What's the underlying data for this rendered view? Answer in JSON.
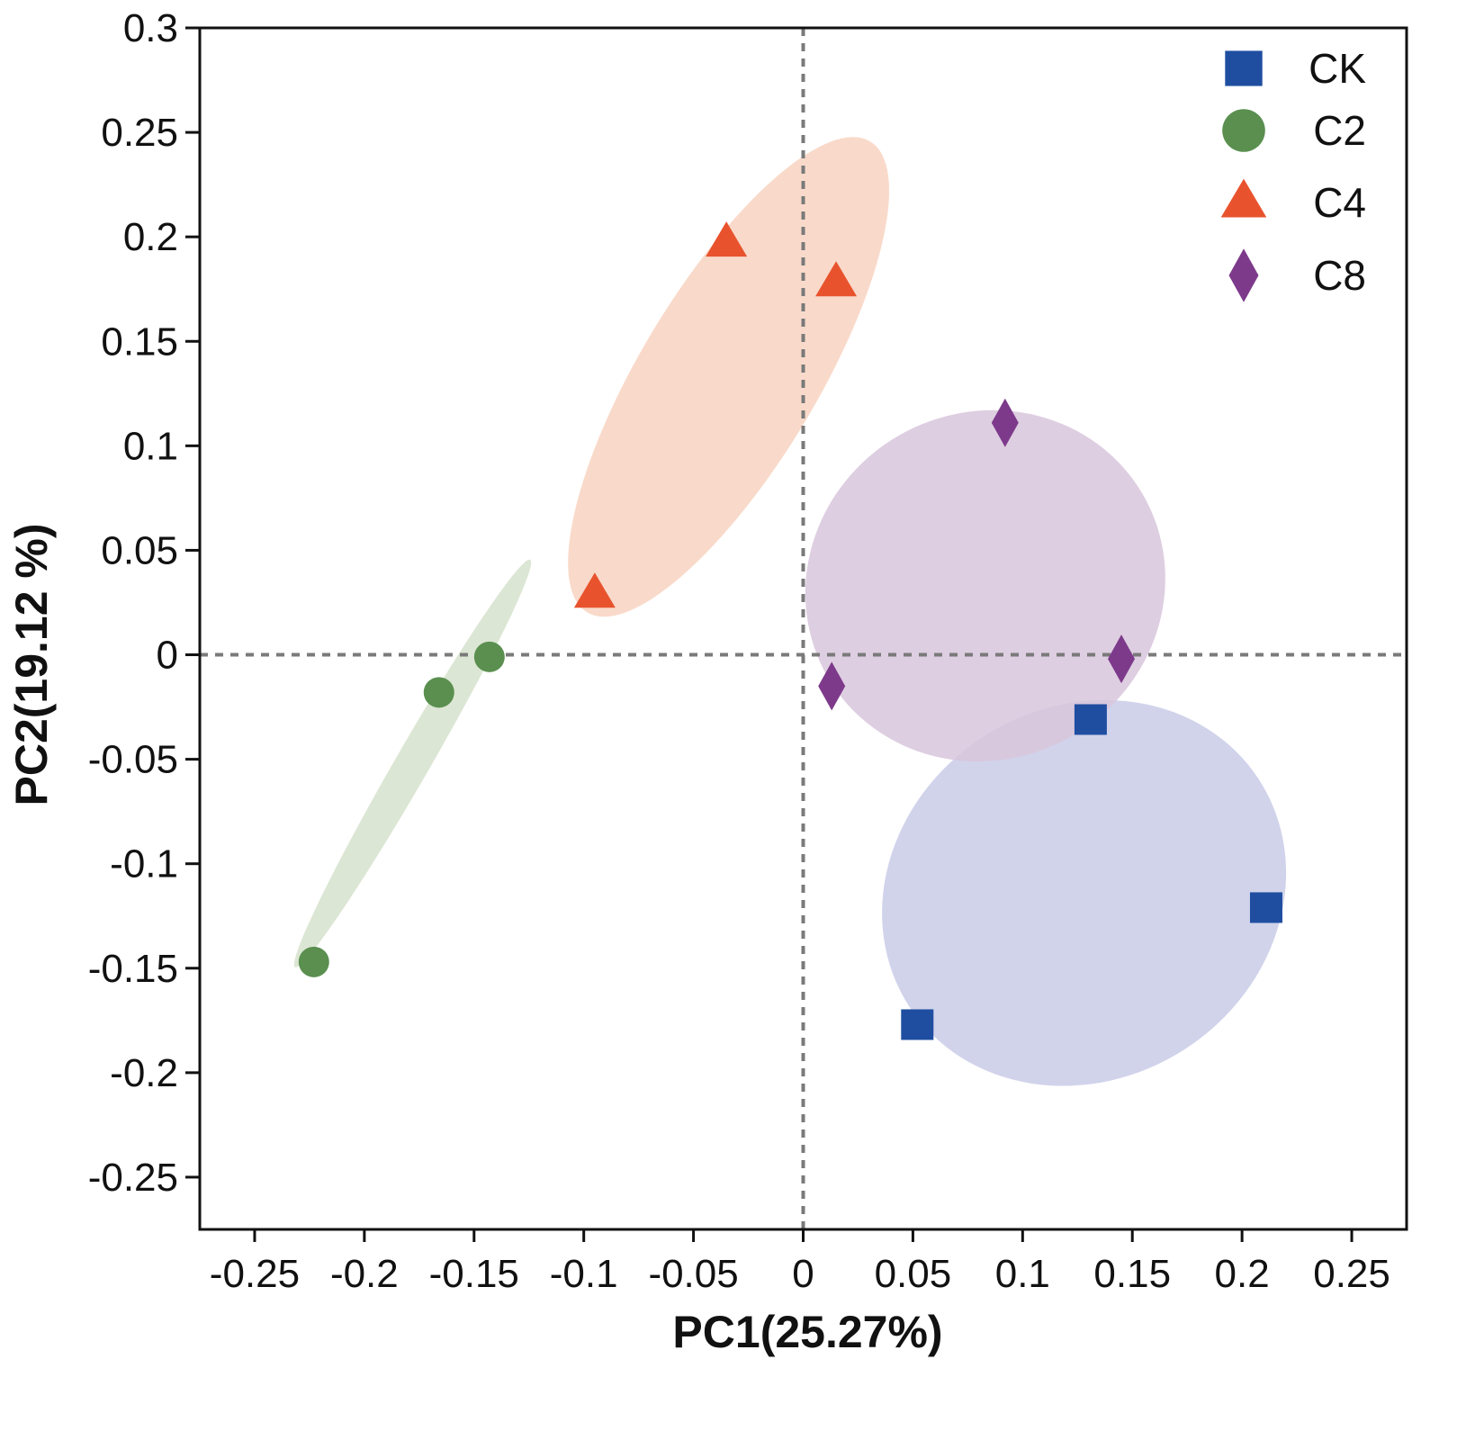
{
  "chart_data": {
    "type": "scatter",
    "title": "",
    "xlabel": "PC1(25.27%)",
    "ylabel": "PC2(19.12 %)",
    "xlim": [
      -0.275,
      0.275
    ],
    "ylim": [
      -0.275,
      0.3
    ],
    "xticks": [
      -0.25,
      -0.2,
      -0.15,
      -0.1,
      -0.05,
      0,
      0.05,
      0.1,
      0.15,
      0.2,
      0.25
    ],
    "xtick_labels": [
      "-0.25",
      "-0.2",
      "-0.15",
      "-0.1",
      "-0.05",
      "0",
      "0.05",
      "0.1",
      "0.15",
      "0.2",
      "0.25"
    ],
    "yticks": [
      0.3,
      0.25,
      0.2,
      0.15,
      0.1,
      0.05,
      0,
      -0.05,
      -0.1,
      -0.15,
      -0.2,
      -0.25
    ],
    "ytick_labels": [
      "0.3",
      "0.25",
      "0.2",
      "0.15",
      "0.1",
      "0.05",
      "0",
      "-0.05",
      "-0.1",
      "-0.15",
      "-0.2",
      "-0.25"
    ],
    "reference_lines": {
      "x": 0,
      "y": 0,
      "style": "dashed"
    },
    "legend_position": "top-right",
    "series": [
      {
        "name": "CK",
        "marker": "square",
        "color": "#1f4ea1",
        "ellipse_color": "#c9cbe8",
        "points": [
          [
            0.131,
            -0.031
          ],
          [
            0.211,
            -0.121
          ],
          [
            0.052,
            -0.177
          ]
        ],
        "ellipse": {
          "center": [
            0.128,
            -0.114
          ],
          "rx": 0.095,
          "ry": 0.089,
          "rotation_deg": -33
        }
      },
      {
        "name": "C2",
        "marker": "circle",
        "color": "#5a8f4f",
        "ellipse_color": "#d6e2cc",
        "points": [
          [
            -0.143,
            -0.001
          ],
          [
            -0.166,
            -0.018
          ],
          [
            -0.223,
            -0.147
          ]
        ],
        "ellipse": {
          "center": [
            -0.178,
            -0.052
          ],
          "rx": 0.1072,
          "ry": 0.0082,
          "rotation_deg": -60
        }
      },
      {
        "name": "C4",
        "marker": "triangle",
        "color": "#e8532e",
        "ellipse_color": "#f8d4c1",
        "points": [
          [
            -0.035,
            0.197
          ],
          [
            0.015,
            0.178
          ],
          [
            -0.095,
            0.029
          ]
        ],
        "ellipse": {
          "center": [
            -0.034,
            0.133
          ],
          "rx": 0.1252,
          "ry": 0.0424,
          "rotation_deg": -59
        }
      },
      {
        "name": "C8",
        "marker": "diamond",
        "color": "#7d3a8b",
        "ellipse_color": "#d8c6dc",
        "points": [
          [
            0.092,
            0.111
          ],
          [
            0.145,
            -0.002
          ],
          [
            0.013,
            -0.015
          ]
        ],
        "ellipse": {
          "center": [
            0.083,
            0.033
          ],
          "rx": 0.083,
          "ry": 0.083,
          "rotation_deg": -30
        }
      }
    ]
  }
}
